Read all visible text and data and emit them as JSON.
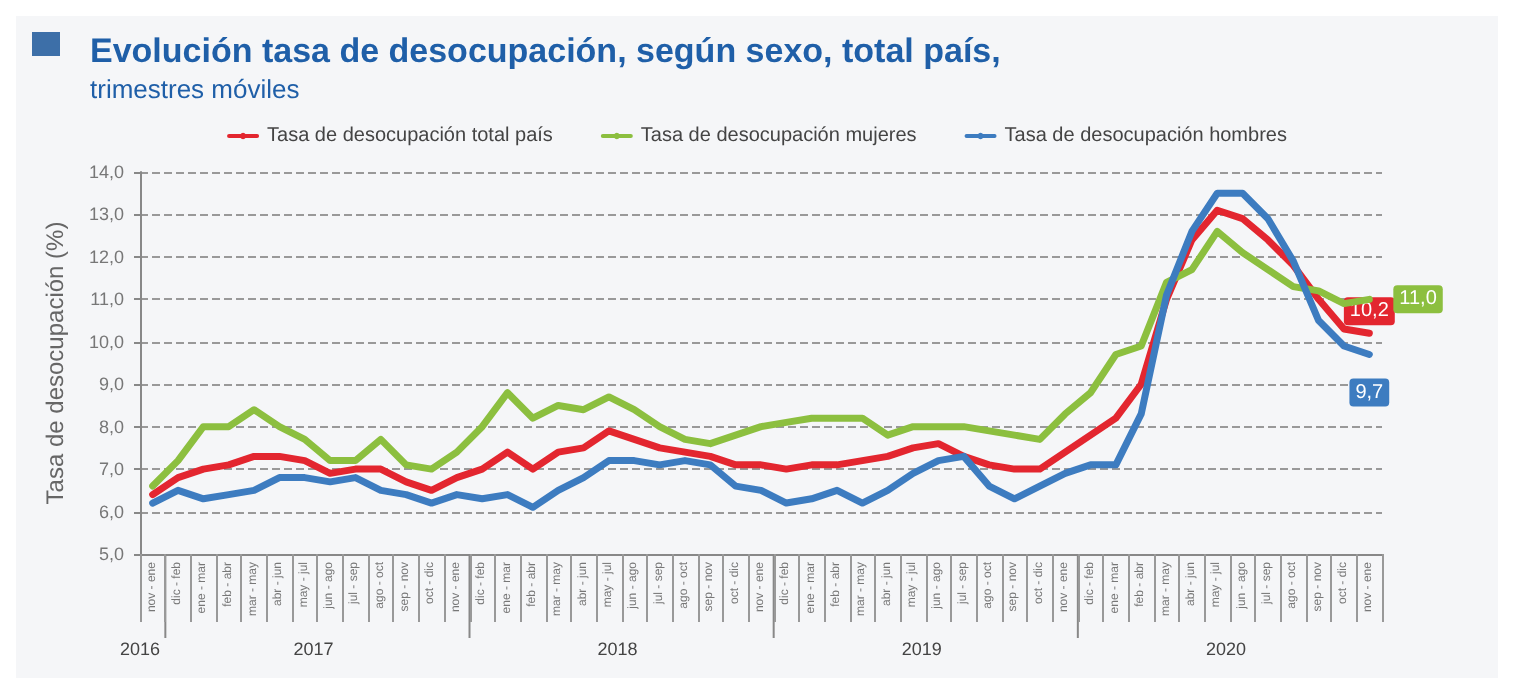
{
  "chart_data": {
    "type": "line",
    "title": "Evolución tasa de desocupación, según sexo, total país,",
    "subtitle": "trimestres móviles",
    "ylabel": "Tasa de desocupación (%)",
    "categories": [
      "nov - ene",
      "dic - feb",
      "ene - mar",
      "feb - abr",
      "mar - may",
      "abr - jun",
      "may - jul",
      "jun - ago",
      "jul - sep",
      "ago - oct",
      "sep - nov",
      "oct - dic",
      "nov - ene",
      "dic - feb",
      "ene - mar",
      "feb - abr",
      "mar - may",
      "abr - jun",
      "may - jul",
      "jun - ago",
      "jul - sep",
      "ago - oct",
      "sep - nov",
      "oct - dic",
      "nov - ene",
      "dic - feb",
      "ene - mar",
      "feb - abr",
      "mar - may",
      "abr - jun",
      "may - jul",
      "jun - ago",
      "jul - sep",
      "ago - oct",
      "sep - nov",
      "oct - dic",
      "nov - ene",
      "dic - feb",
      "ene - mar",
      "feb - abr",
      "mar - may",
      "abr - jun",
      "may - jul",
      "jun - ago",
      "jul - sep",
      "ago - oct",
      "sep - nov",
      "oct - dic",
      "nov - ene"
    ],
    "series": [
      {
        "name": "Tasa de desocupación total país",
        "color": "#e3262f",
        "values": [
          6.4,
          6.8,
          7.0,
          7.1,
          7.3,
          7.3,
          7.2,
          6.9,
          7.0,
          7.0,
          6.7,
          6.5,
          6.8,
          7.0,
          7.4,
          7.0,
          7.4,
          7.5,
          7.9,
          7.7,
          7.5,
          7.4,
          7.3,
          7.1,
          7.1,
          7.0,
          7.1,
          7.1,
          7.2,
          7.3,
          7.5,
          7.6,
          7.3,
          7.1,
          7.0,
          7.0,
          7.4,
          7.8,
          8.2,
          9.0,
          11.0,
          12.4,
          13.1,
          12.9,
          12.4,
          11.8,
          11.0,
          10.3,
          10.2
        ],
        "value_labels": [
          null,
          null,
          null,
          null,
          null,
          null,
          null,
          null,
          null,
          null,
          null,
          null,
          null,
          null,
          null,
          null,
          null,
          null,
          null,
          null,
          null,
          null,
          null,
          null,
          null,
          null,
          null,
          null,
          null,
          null,
          null,
          null,
          null,
          null,
          null,
          null,
          null,
          null,
          null,
          null,
          null,
          null,
          null,
          null,
          null,
          null,
          null,
          null,
          "10,2"
        ]
      },
      {
        "name": "Tasa de desocupación mujeres",
        "color": "#8cbf3f",
        "values": [
          6.6,
          7.2,
          8.0,
          8.0,
          8.4,
          8.0,
          7.7,
          7.2,
          7.2,
          7.7,
          7.1,
          7.0,
          7.4,
          8.0,
          8.8,
          8.2,
          8.5,
          8.4,
          8.7,
          8.4,
          8.0,
          7.7,
          7.6,
          7.8,
          8.0,
          8.1,
          8.2,
          8.2,
          8.2,
          7.8,
          8.0,
          8.0,
          8.0,
          7.9,
          7.8,
          7.7,
          8.3,
          8.8,
          9.7,
          9.9,
          11.4,
          11.7,
          12.6,
          12.1,
          11.7,
          11.3,
          11.2,
          10.9,
          11.0
        ],
        "value_labels": [
          null,
          null,
          null,
          null,
          null,
          null,
          null,
          null,
          null,
          null,
          null,
          null,
          null,
          null,
          null,
          null,
          null,
          null,
          null,
          null,
          null,
          null,
          null,
          null,
          null,
          null,
          null,
          null,
          null,
          null,
          null,
          null,
          null,
          null,
          null,
          null,
          null,
          null,
          null,
          null,
          null,
          null,
          null,
          null,
          null,
          null,
          null,
          null,
          "11,0"
        ]
      },
      {
        "name": "Tasa de desocupación hombres",
        "color": "#3d7cc0",
        "values": [
          6.2,
          6.5,
          6.3,
          6.4,
          6.5,
          6.8,
          6.8,
          6.7,
          6.8,
          6.5,
          6.4,
          6.2,
          6.4,
          6.3,
          6.4,
          6.1,
          6.5,
          6.8,
          7.2,
          7.2,
          7.1,
          7.2,
          7.1,
          6.6,
          6.5,
          6.2,
          6.3,
          6.5,
          6.2,
          6.5,
          6.9,
          7.2,
          7.3,
          6.6,
          6.3,
          6.6,
          6.9,
          7.1,
          7.1,
          8.3,
          11.1,
          12.6,
          13.5,
          13.5,
          12.9,
          11.9,
          10.5,
          9.9,
          9.7
        ],
        "value_labels": [
          null,
          null,
          null,
          null,
          null,
          null,
          null,
          null,
          null,
          null,
          null,
          null,
          null,
          null,
          null,
          null,
          null,
          null,
          null,
          null,
          null,
          null,
          null,
          null,
          null,
          null,
          null,
          null,
          null,
          null,
          null,
          null,
          null,
          null,
          null,
          null,
          null,
          null,
          null,
          null,
          null,
          null,
          null,
          null,
          null,
          null,
          null,
          null,
          "9,7"
        ]
      }
    ],
    "ylim": [
      5,
      14
    ],
    "yticks": [
      {
        "value": 5,
        "label": "5,0"
      },
      {
        "value": 6,
        "label": "6,0"
      },
      {
        "value": 7,
        "label": "7,0"
      },
      {
        "value": 8,
        "label": "8,0"
      },
      {
        "value": 9,
        "label": "9,0"
      },
      {
        "value": 10,
        "label": "10,0"
      },
      {
        "value": 11,
        "label": "11,0"
      },
      {
        "value": 12,
        "label": "12,0"
      },
      {
        "value": 13,
        "label": "13,0"
      },
      {
        "value": 14,
        "label": "14,0"
      }
    ],
    "annotations": [
      "2016",
      "2017",
      "2018",
      "2019",
      "2020"
    ],
    "grid": "y",
    "legend": "top",
    "marker": "none",
    "line_style": "solid"
  }
}
